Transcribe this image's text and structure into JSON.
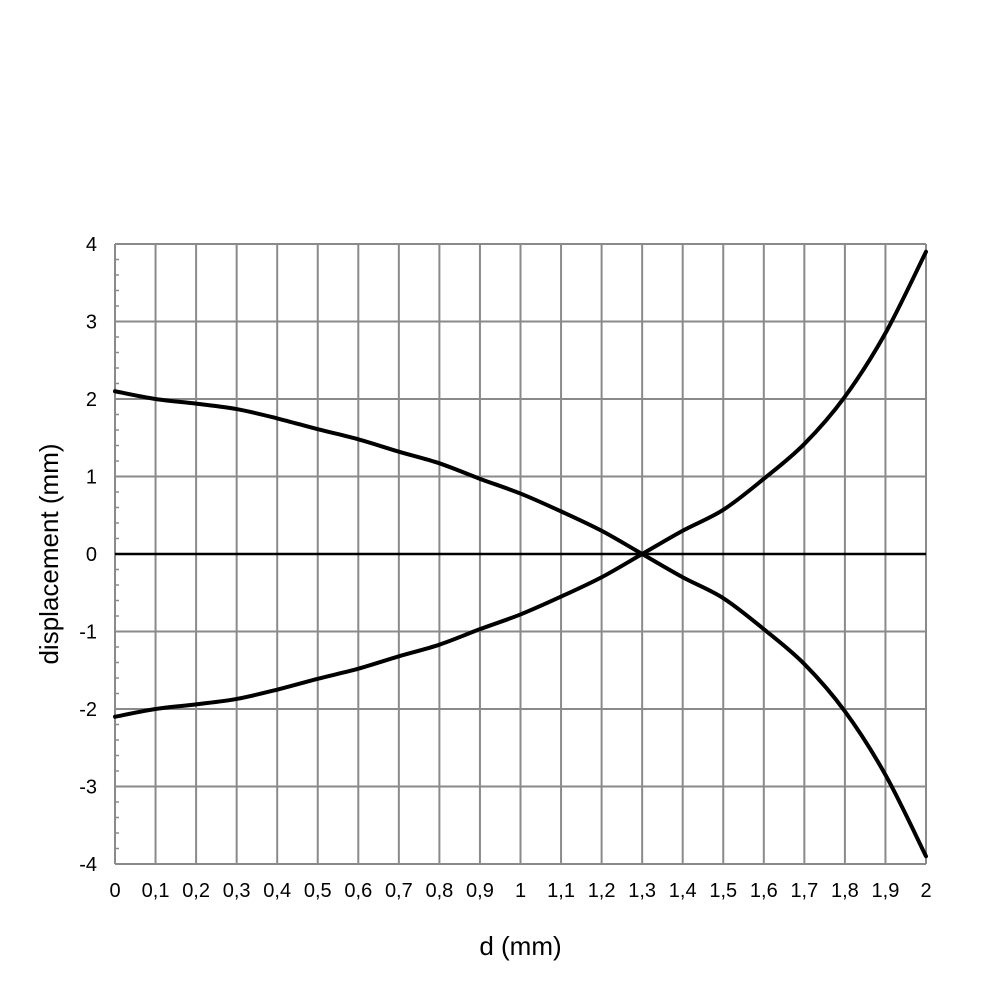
{
  "chart_data": {
    "type": "line",
    "title": "",
    "xlabel": "d (mm)",
    "ylabel": "displacement (mm)",
    "xlim": [
      0,
      2
    ],
    "ylim": [
      -4,
      4
    ],
    "grid": true,
    "x_tick_labels": [
      "0",
      "0,1",
      "0,2",
      "0,3",
      "0,4",
      "0,5",
      "0,6",
      "0,7",
      "0,8",
      "0,9",
      "1",
      "1,1",
      "1,2",
      "1,3",
      "1,4",
      "1,5",
      "1,6",
      "1,7",
      "1,8",
      "1,9",
      "2"
    ],
    "y_tick_labels": [
      "4",
      "3",
      "2",
      "1",
      "0",
      "-1",
      "-2",
      "-3",
      "-4"
    ],
    "x": [
      0,
      0.1,
      0.2,
      0.3,
      0.4,
      0.5,
      0.6,
      0.7,
      0.8,
      0.9,
      1.0,
      1.1,
      1.2,
      1.3,
      1.4,
      1.5,
      1.6,
      1.7,
      1.8,
      1.9,
      2.0
    ],
    "series": [
      {
        "values": [
          2.1,
          2.0,
          1.94,
          1.87,
          1.75,
          1.61,
          1.48,
          1.32,
          1.17,
          0.97,
          0.78,
          0.55,
          0.3,
          0.0,
          -0.3,
          -0.57,
          -0.97,
          -1.42,
          -2.03,
          -2.85,
          -3.9
        ]
      },
      {
        "values": [
          -2.1,
          -2.0,
          -1.94,
          -1.87,
          -1.75,
          -1.61,
          -1.48,
          -1.32,
          -1.17,
          -0.97,
          -0.78,
          -0.55,
          -0.3,
          0.0,
          0.3,
          0.57,
          0.97,
          1.42,
          2.03,
          2.85,
          3.9
        ]
      }
    ]
  }
}
